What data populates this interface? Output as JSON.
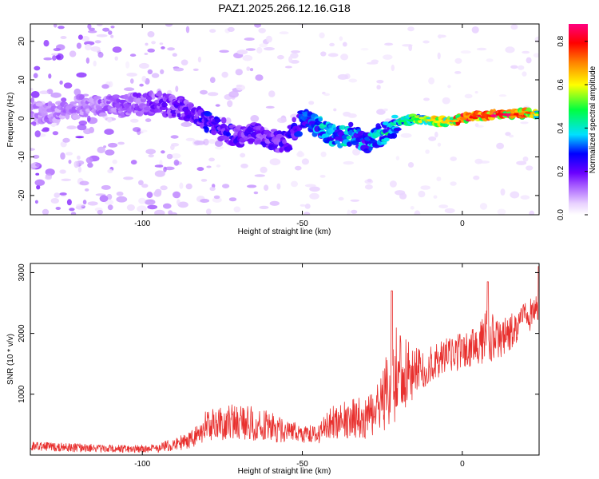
{
  "title": "PAZ1.2025.266.12.16.G18",
  "chart_data": [
    {
      "type": "heatmap",
      "name": "spectrogram",
      "xlabel": "Height of straight line (km)",
      "ylabel": "Frequency (Hz)",
      "xlim": [
        -135,
        24
      ],
      "ylim": [
        -25,
        24.5
      ],
      "xticks": [
        -100,
        -50,
        0
      ],
      "yticks": [
        -20,
        -10,
        0,
        10,
        20
      ],
      "colorbar": {
        "label": "Normalized spectral amplitude",
        "range": [
          0,
          0.88
        ],
        "ticks": [
          "0.0",
          "0.2",
          "0.4",
          "0.6",
          "0.8"
        ],
        "tick_values": [
          0,
          0.2,
          0.4,
          0.6,
          0.8
        ],
        "colors": [
          "#ffffff",
          "#e8d0ff",
          "#a050ff",
          "#6a00ff",
          "#0000ff",
          "#00e0ff",
          "#00ff40",
          "#ffff00",
          "#ff8000",
          "#ff0000",
          "#ff0080"
        ]
      },
      "ridge": [
        {
          "x": -135,
          "f": 1.0,
          "a": 0.12
        },
        {
          "x": -120,
          "f": 3.0,
          "a": 0.12
        },
        {
          "x": -105,
          "f": 3.5,
          "a": 0.15
        },
        {
          "x": -95,
          "f": 4.0,
          "a": 0.18
        },
        {
          "x": -85,
          "f": 2.0,
          "a": 0.2
        },
        {
          "x": -80,
          "f": -1.0,
          "a": 0.26
        },
        {
          "x": -75,
          "f": -3.0,
          "a": 0.25
        },
        {
          "x": -70,
          "f": -5.0,
          "a": 0.22
        },
        {
          "x": -65,
          "f": -4.0,
          "a": 0.22
        },
        {
          "x": -60,
          "f": -5.0,
          "a": 0.22
        },
        {
          "x": -55,
          "f": -6.5,
          "a": 0.22
        },
        {
          "x": -50,
          "f": 0.0,
          "a": 0.3
        },
        {
          "x": -45,
          "f": -2.0,
          "a": 0.36
        },
        {
          "x": -40,
          "f": -5.0,
          "a": 0.38
        },
        {
          "x": -35,
          "f": -4.0,
          "a": 0.38
        },
        {
          "x": -30,
          "f": -6.0,
          "a": 0.35
        },
        {
          "x": -25,
          "f": -4.0,
          "a": 0.4
        },
        {
          "x": -20,
          "f": -1.0,
          "a": 0.42
        },
        {
          "x": -15,
          "f": 0.0,
          "a": 0.5
        },
        {
          "x": -10,
          "f": -0.5,
          "a": 0.6
        },
        {
          "x": -5,
          "f": -1.0,
          "a": 0.68
        },
        {
          "x": 0,
          "f": 0.0,
          "a": 0.72
        },
        {
          "x": 5,
          "f": 0.5,
          "a": 0.8
        },
        {
          "x": 10,
          "f": 1.0,
          "a": 0.85
        },
        {
          "x": 15,
          "f": 1.0,
          "a": 0.8
        },
        {
          "x": 20,
          "f": 1.5,
          "a": 0.7
        },
        {
          "x": 24,
          "f": 1.0,
          "a": 0.6
        }
      ]
    },
    {
      "type": "line",
      "name": "snr",
      "xlabel": "Height of straight line (km)",
      "ylabel": "SNR (10 * v/v)",
      "xlim": [
        -135,
        24
      ],
      "ylim": [
        0,
        3150
      ],
      "xticks": [
        -100,
        -50,
        0
      ],
      "yticks": [
        1000,
        2000,
        3000
      ],
      "color": "#e8302e",
      "envelope": [
        {
          "x": -135,
          "mean": 150,
          "noise": 70
        },
        {
          "x": -120,
          "mean": 120,
          "noise": 70
        },
        {
          "x": -105,
          "mean": 100,
          "noise": 60
        },
        {
          "x": -95,
          "mean": 110,
          "noise": 70
        },
        {
          "x": -85,
          "mean": 250,
          "noise": 150
        },
        {
          "x": -80,
          "mean": 480,
          "noise": 250
        },
        {
          "x": -70,
          "mean": 560,
          "noise": 300
        },
        {
          "x": -60,
          "mean": 460,
          "noise": 250
        },
        {
          "x": -55,
          "mean": 380,
          "noise": 180
        },
        {
          "x": -45,
          "mean": 330,
          "noise": 140
        },
        {
          "x": -42,
          "mean": 520,
          "noise": 250
        },
        {
          "x": -35,
          "mean": 620,
          "noise": 350
        },
        {
          "x": -30,
          "mean": 600,
          "noise": 330
        },
        {
          "x": -25,
          "mean": 850,
          "noise": 450
        },
        {
          "x": -22,
          "mean": 1300,
          "noise": 900
        },
        {
          "x": -18,
          "mean": 1350,
          "noise": 650
        },
        {
          "x": -15,
          "mean": 1350,
          "noise": 400
        },
        {
          "x": -10,
          "mean": 1500,
          "noise": 300
        },
        {
          "x": -5,
          "mean": 1650,
          "noise": 300
        },
        {
          "x": 0,
          "mean": 1700,
          "noise": 300
        },
        {
          "x": 5,
          "mean": 1800,
          "noise": 320
        },
        {
          "x": 8,
          "mean": 2000,
          "noise": 500
        },
        {
          "x": 12,
          "mean": 1900,
          "noise": 300
        },
        {
          "x": 18,
          "mean": 2150,
          "noise": 280
        },
        {
          "x": 24,
          "mean": 2450,
          "noise": 250
        }
      ],
      "peaks": [
        {
          "x": -22,
          "y": 2700
        },
        {
          "x": 8,
          "y": 2850
        },
        {
          "x": 24,
          "y": 3100
        }
      ]
    }
  ]
}
